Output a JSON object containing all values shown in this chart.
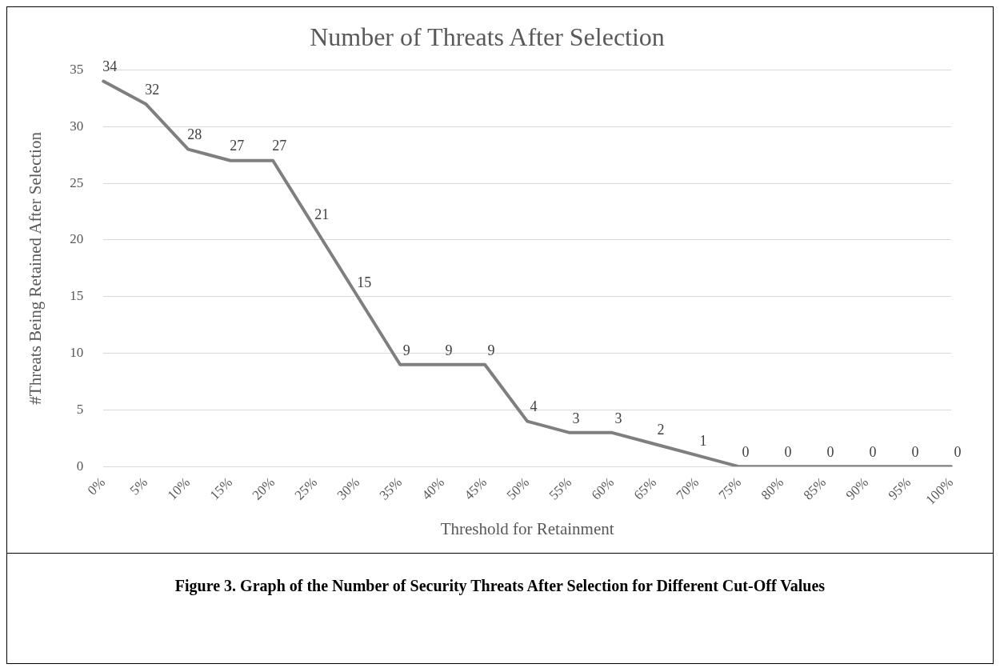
{
  "chart_data": {
    "type": "line",
    "title": "Number of Threats After Selection",
    "xlabel": "Threshold for Retainment",
    "ylabel": "#Threats Being Retained After Selection",
    "categories": [
      "0%",
      "5%",
      "10%",
      "15%",
      "20%",
      "25%",
      "30%",
      "35%",
      "40%",
      "45%",
      "50%",
      "55%",
      "60%",
      "65%",
      "70%",
      "75%",
      "80%",
      "85%",
      "90%",
      "95%",
      "100%"
    ],
    "series": [
      {
        "color": "#7f7f7f",
        "values": [
          34,
          32,
          28,
          27,
          27,
          21,
          15,
          9,
          9,
          9,
          4,
          3,
          3,
          2,
          1,
          0,
          0,
          0,
          0,
          0,
          0
        ]
      }
    ],
    "ylim": [
      0,
      35
    ],
    "yticks": [
      0,
      5,
      10,
      15,
      20,
      25,
      30,
      35
    ],
    "grid": "y",
    "data_labels": true,
    "legend": false,
    "marker": "none",
    "line_style": "solid",
    "annotations": [
      "Figure 3. Graph of the Number of Security Threats After Selection for Different Cut-Off Values"
    ]
  }
}
